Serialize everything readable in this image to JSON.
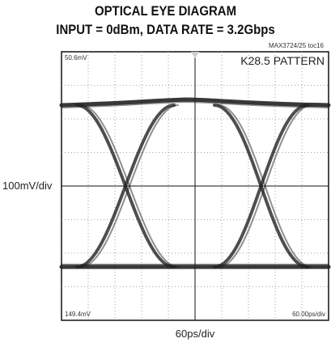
{
  "chart_data": {
    "type": "eye",
    "title": "OPTICAL EYE DIAGRAM",
    "subtitle": "INPUT = 0dBm, DATA RATE = 3.2Gbps",
    "figure_id": "MAX3724/25 toc16",
    "top_label": "50.6mV",
    "pattern_label": "K28.5 PATTERN",
    "bottom_label": "149.4mV",
    "timebase_label": "60.00ps/div",
    "y_label": "100mV/div",
    "x_label": "60ps/div"
  }
}
